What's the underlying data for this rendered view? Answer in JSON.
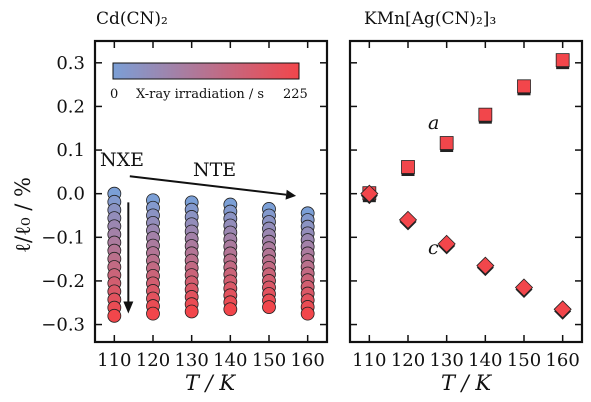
{
  "chart_data": [
    {
      "type": "scatter",
      "title": "Cd(CN)₂",
      "xlabel": "T / K",
      "ylabel": "ℓ/ℓ₀ / %",
      "x_ticks": [
        110,
        120,
        130,
        140,
        150,
        160
      ],
      "y_ticks": [
        -0.3,
        -0.2,
        -0.1,
        0.0,
        0.1,
        0.2,
        0.3
      ],
      "xlim": [
        105,
        165
      ],
      "ylim": [
        -0.34,
        0.35
      ],
      "grid": false,
      "colorbar": {
        "label": "X-ray irradiation / s",
        "min": 0,
        "max": 225,
        "min_label": "0",
        "max_label": "225",
        "colors": [
          "#7b9fd6",
          "#f2464b"
        ]
      },
      "series": [
        {
          "x": 110,
          "y_start": 0.0,
          "y_end": -0.28,
          "points": 16
        },
        {
          "x": 120,
          "y_start": -0.015,
          "y_end": -0.275,
          "points": 16
        },
        {
          "x": 130,
          "y_start": -0.02,
          "y_end": -0.27,
          "points": 16
        },
        {
          "x": 140,
          "y_start": -0.025,
          "y_end": -0.265,
          "points": 16
        },
        {
          "x": 150,
          "y_start": -0.035,
          "y_end": -0.26,
          "points": 16
        },
        {
          "x": 160,
          "y_start": -0.045,
          "y_end": -0.275,
          "points": 16
        }
      ],
      "annotations": [
        {
          "text": "NXE",
          "arrow": "down",
          "x": 110,
          "y_from": -0.02,
          "y_to": -0.27
        },
        {
          "text": "NTE",
          "arrow": "right",
          "x_from": 114,
          "y_from": 0.04,
          "x_to": 157,
          "y_to": -0.005
        }
      ]
    },
    {
      "type": "scatter",
      "title": "KMn[Ag(CN)₂]₃",
      "xlabel": "T / K",
      "x_ticks": [
        110,
        120,
        130,
        140,
        150,
        160
      ],
      "xlim": [
        105,
        165
      ],
      "ylim": [
        -0.34,
        0.35
      ],
      "grid": false,
      "series": [
        {
          "name": "a",
          "marker": "square",
          "color": "#f2464b",
          "x": [
            110,
            120,
            130,
            140,
            150,
            160
          ],
          "y": [
            0.0,
            0.06,
            0.115,
            0.18,
            0.245,
            0.305
          ]
        },
        {
          "name": "c",
          "marker": "diamond",
          "color": "#f2464b",
          "x": [
            110,
            120,
            130,
            140,
            150,
            160
          ],
          "y": [
            0.0,
            -0.06,
            -0.115,
            -0.165,
            -0.215,
            -0.265
          ]
        }
      ]
    }
  ]
}
